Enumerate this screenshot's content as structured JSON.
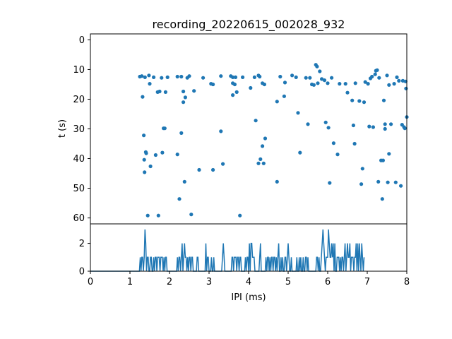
{
  "chart_data": [
    {
      "type": "scatter",
      "title": "recording_20220615_002028_932",
      "xlabel": "",
      "ylabel": "t (s)",
      "xlim": [
        0,
        8
      ],
      "ylim": [
        62,
        -2
      ],
      "y_inverted": true,
      "yticks": [
        0,
        10,
        20,
        30,
        40,
        50,
        60
      ],
      "color": "#1f77b4",
      "points": [
        [
          1.25,
          12.4
        ],
        [
          1.3,
          12.2
        ],
        [
          1.32,
          19.2
        ],
        [
          1.35,
          32.2
        ],
        [
          1.36,
          40.4
        ],
        [
          1.37,
          44.6
        ],
        [
          1.38,
          12.6
        ],
        [
          1.4,
          37.8
        ],
        [
          1.41,
          38.2
        ],
        [
          1.45,
          59.2
        ],
        [
          1.48,
          12.0
        ],
        [
          1.5,
          14.8
        ],
        [
          1.52,
          42.6
        ],
        [
          1.6,
          12.6
        ],
        [
          1.65,
          38.8
        ],
        [
          1.7,
          17.6
        ],
        [
          1.72,
          59.2
        ],
        [
          1.75,
          17.4
        ],
        [
          1.8,
          12.8
        ],
        [
          1.82,
          38.0
        ],
        [
          1.85,
          29.8
        ],
        [
          1.88,
          29.8
        ],
        [
          1.9,
          17.6
        ],
        [
          1.95,
          12.6
        ],
        [
          2.2,
          12.4
        ],
        [
          2.2,
          38.6
        ],
        [
          2.25,
          53.6
        ],
        [
          2.3,
          31.4
        ],
        [
          2.3,
          12.4
        ],
        [
          2.35,
          17.4
        ],
        [
          2.35,
          21.0
        ],
        [
          2.38,
          47.8
        ],
        [
          2.4,
          19.4
        ],
        [
          2.45,
          12.8
        ],
        [
          2.5,
          12.2
        ],
        [
          2.55,
          58.8
        ],
        [
          2.62,
          17.2
        ],
        [
          2.75,
          43.8
        ],
        [
          2.85,
          12.8
        ],
        [
          3.05,
          14.8
        ],
        [
          3.1,
          15.0
        ],
        [
          3.1,
          43.8
        ],
        [
          3.3,
          12.2
        ],
        [
          3.3,
          30.8
        ],
        [
          3.35,
          41.8
        ],
        [
          3.55,
          12.2
        ],
        [
          3.6,
          12.6
        ],
        [
          3.6,
          14.6
        ],
        [
          3.6,
          18.6
        ],
        [
          3.65,
          15.0
        ],
        [
          3.67,
          12.6
        ],
        [
          3.7,
          17.6
        ],
        [
          3.78,
          59.2
        ],
        [
          3.85,
          12.6
        ],
        [
          4.05,
          16.2
        ],
        [
          4.15,
          12.6
        ],
        [
          4.18,
          27.2
        ],
        [
          4.25,
          12.0
        ],
        [
          4.25,
          41.6
        ],
        [
          4.28,
          12.4
        ],
        [
          4.3,
          40.2
        ],
        [
          4.35,
          35.8
        ],
        [
          4.35,
          14.6
        ],
        [
          4.38,
          41.6
        ],
        [
          4.4,
          15.0
        ],
        [
          4.42,
          33.2
        ],
        [
          4.72,
          20.8
        ],
        [
          4.72,
          47.8
        ],
        [
          4.8,
          12.4
        ],
        [
          4.9,
          19.0
        ],
        [
          4.92,
          14.4
        ],
        [
          5.1,
          12.0
        ],
        [
          5.2,
          12.6
        ],
        [
          5.25,
          24.6
        ],
        [
          5.3,
          38.0
        ],
        [
          5.45,
          12.8
        ],
        [
          5.5,
          28.4
        ],
        [
          5.55,
          12.8
        ],
        [
          5.6,
          15.0
        ],
        [
          5.65,
          15.2
        ],
        [
          5.7,
          8.4
        ],
        [
          5.73,
          9.0
        ],
        [
          5.75,
          14.6
        ],
        [
          5.8,
          10.6
        ],
        [
          5.85,
          13.2
        ],
        [
          5.92,
          13.6
        ],
        [
          5.95,
          27.8
        ],
        [
          6.0,
          14.6
        ],
        [
          6.02,
          29.6
        ],
        [
          6.05,
          48.2
        ],
        [
          6.1,
          12.8
        ],
        [
          6.15,
          34.8
        ],
        [
          6.25,
          38.6
        ],
        [
          6.3,
          14.8
        ],
        [
          6.45,
          14.8
        ],
        [
          6.5,
          17.8
        ],
        [
          6.62,
          20.4
        ],
        [
          6.65,
          28.8
        ],
        [
          6.68,
          35.0
        ],
        [
          6.7,
          14.6
        ],
        [
          6.8,
          20.6
        ],
        [
          6.85,
          48.6
        ],
        [
          6.88,
          43.4
        ],
        [
          6.92,
          21.0
        ],
        [
          6.95,
          14.2
        ],
        [
          7.02,
          14.8
        ],
        [
          7.05,
          29.2
        ],
        [
          7.08,
          13.0
        ],
        [
          7.12,
          12.4
        ],
        [
          7.15,
          29.4
        ],
        [
          7.2,
          11.6
        ],
        [
          7.22,
          10.4
        ],
        [
          7.25,
          10.2
        ],
        [
          7.28,
          47.8
        ],
        [
          7.3,
          12.8
        ],
        [
          7.35,
          40.6
        ],
        [
          7.38,
          53.6
        ],
        [
          7.4,
          40.6
        ],
        [
          7.42,
          20.4
        ],
        [
          7.45,
          28.4
        ],
        [
          7.45,
          30.0
        ],
        [
          7.5,
          12.0
        ],
        [
          7.52,
          48.0
        ],
        [
          7.55,
          38.4
        ],
        [
          7.55,
          15.2
        ],
        [
          7.6,
          28.4
        ],
        [
          7.68,
          14.8
        ],
        [
          7.72,
          48.0
        ],
        [
          7.75,
          12.6
        ],
        [
          7.8,
          13.8
        ],
        [
          7.85,
          49.2
        ],
        [
          7.88,
          28.6
        ],
        [
          7.9,
          13.8
        ],
        [
          7.93,
          29.4
        ],
        [
          7.95,
          29.8
        ],
        [
          7.98,
          16.4
        ],
        [
          8.0,
          26.0
        ],
        [
          7.97,
          14.0
        ]
      ]
    },
    {
      "type": "line",
      "xlabel": "IPI (ms)",
      "ylabel": "",
      "xlim": [
        0,
        8
      ],
      "ylim": [
        0,
        3.4
      ],
      "xticks": [
        0,
        1,
        2,
        3,
        4,
        5,
        6,
        7,
        8
      ],
      "yticks": [
        0,
        2
      ],
      "color": "#1f77b4",
      "x_step_ms": 0.02,
      "values": [
        0,
        0,
        0,
        0,
        0,
        0,
        0,
        0,
        0,
        0,
        0,
        0,
        0,
        0,
        0,
        0,
        0,
        0,
        0,
        0,
        0,
        0,
        0,
        0,
        0,
        0,
        0,
        0,
        0,
        0,
        0,
        0,
        0,
        0,
        0,
        0,
        0,
        0,
        0,
        0,
        0,
        0,
        0,
        0,
        0,
        0,
        0,
        0,
        0,
        0,
        0,
        0,
        0,
        0,
        0,
        0,
        0,
        0,
        0,
        0,
        0,
        0,
        0,
        1,
        0,
        1,
        1,
        0,
        1,
        3,
        2,
        0,
        1,
        1,
        0,
        0,
        1,
        1,
        0,
        0,
        1,
        0,
        1,
        1,
        0,
        1,
        1,
        1,
        0,
        1,
        1,
        1,
        0,
        1,
        0,
        1,
        1,
        0,
        0,
        0,
        0,
        0,
        0,
        0,
        0,
        0,
        0,
        0,
        0,
        0,
        1,
        0,
        1,
        1,
        0,
        1,
        2,
        0,
        1,
        2,
        1,
        1,
        0,
        1,
        0,
        1,
        1,
        0,
        1,
        1,
        0,
        0,
        0,
        0,
        0,
        1,
        1,
        0,
        0,
        0,
        0,
        0,
        0,
        0,
        0,
        0,
        2,
        0,
        1,
        1,
        0,
        0,
        0,
        1,
        0,
        0,
        1,
        0,
        0,
        0,
        0,
        0,
        0,
        0,
        0,
        0,
        0,
        1,
        2,
        1,
        0,
        0,
        0,
        0,
        0,
        0,
        0,
        0,
        0,
        1,
        1,
        0,
        1,
        1,
        1,
        0,
        1,
        1,
        0,
        1,
        1,
        0,
        0,
        0,
        0,
        0,
        1,
        0,
        1,
        1,
        0,
        2,
        0,
        2,
        2,
        1,
        1,
        1,
        0,
        0,
        0,
        0,
        0,
        0,
        1,
        2,
        0,
        0,
        0,
        0,
        0,
        0,
        1,
        0,
        1,
        1,
        0,
        1,
        0,
        1,
        1,
        0,
        1,
        1,
        0,
        1,
        0,
        1,
        2,
        0,
        0,
        1,
        0,
        1,
        0,
        0,
        1,
        1,
        0,
        1,
        2,
        1,
        0,
        0,
        1,
        0,
        0,
        0,
        0,
        0,
        0,
        1,
        0,
        0,
        1,
        0,
        1,
        0,
        0,
        1,
        0,
        0,
        1,
        1,
        0,
        1,
        0,
        0,
        0,
        0,
        0,
        0,
        0,
        0,
        0,
        0,
        1,
        1,
        0,
        1,
        0,
        0,
        1,
        2,
        3,
        2,
        1,
        0,
        1,
        1,
        1,
        3,
        2,
        1,
        1,
        2,
        1,
        2,
        0,
        2,
        0,
        0,
        1,
        1,
        1,
        0,
        1,
        0,
        1,
        1,
        0,
        1,
        2,
        0,
        1,
        2,
        1,
        1,
        2,
        0,
        1,
        1,
        1,
        0,
        1,
        1,
        2,
        0,
        2,
        0,
        2,
        1,
        0,
        2,
        1,
        0,
        1
      ]
    }
  ]
}
